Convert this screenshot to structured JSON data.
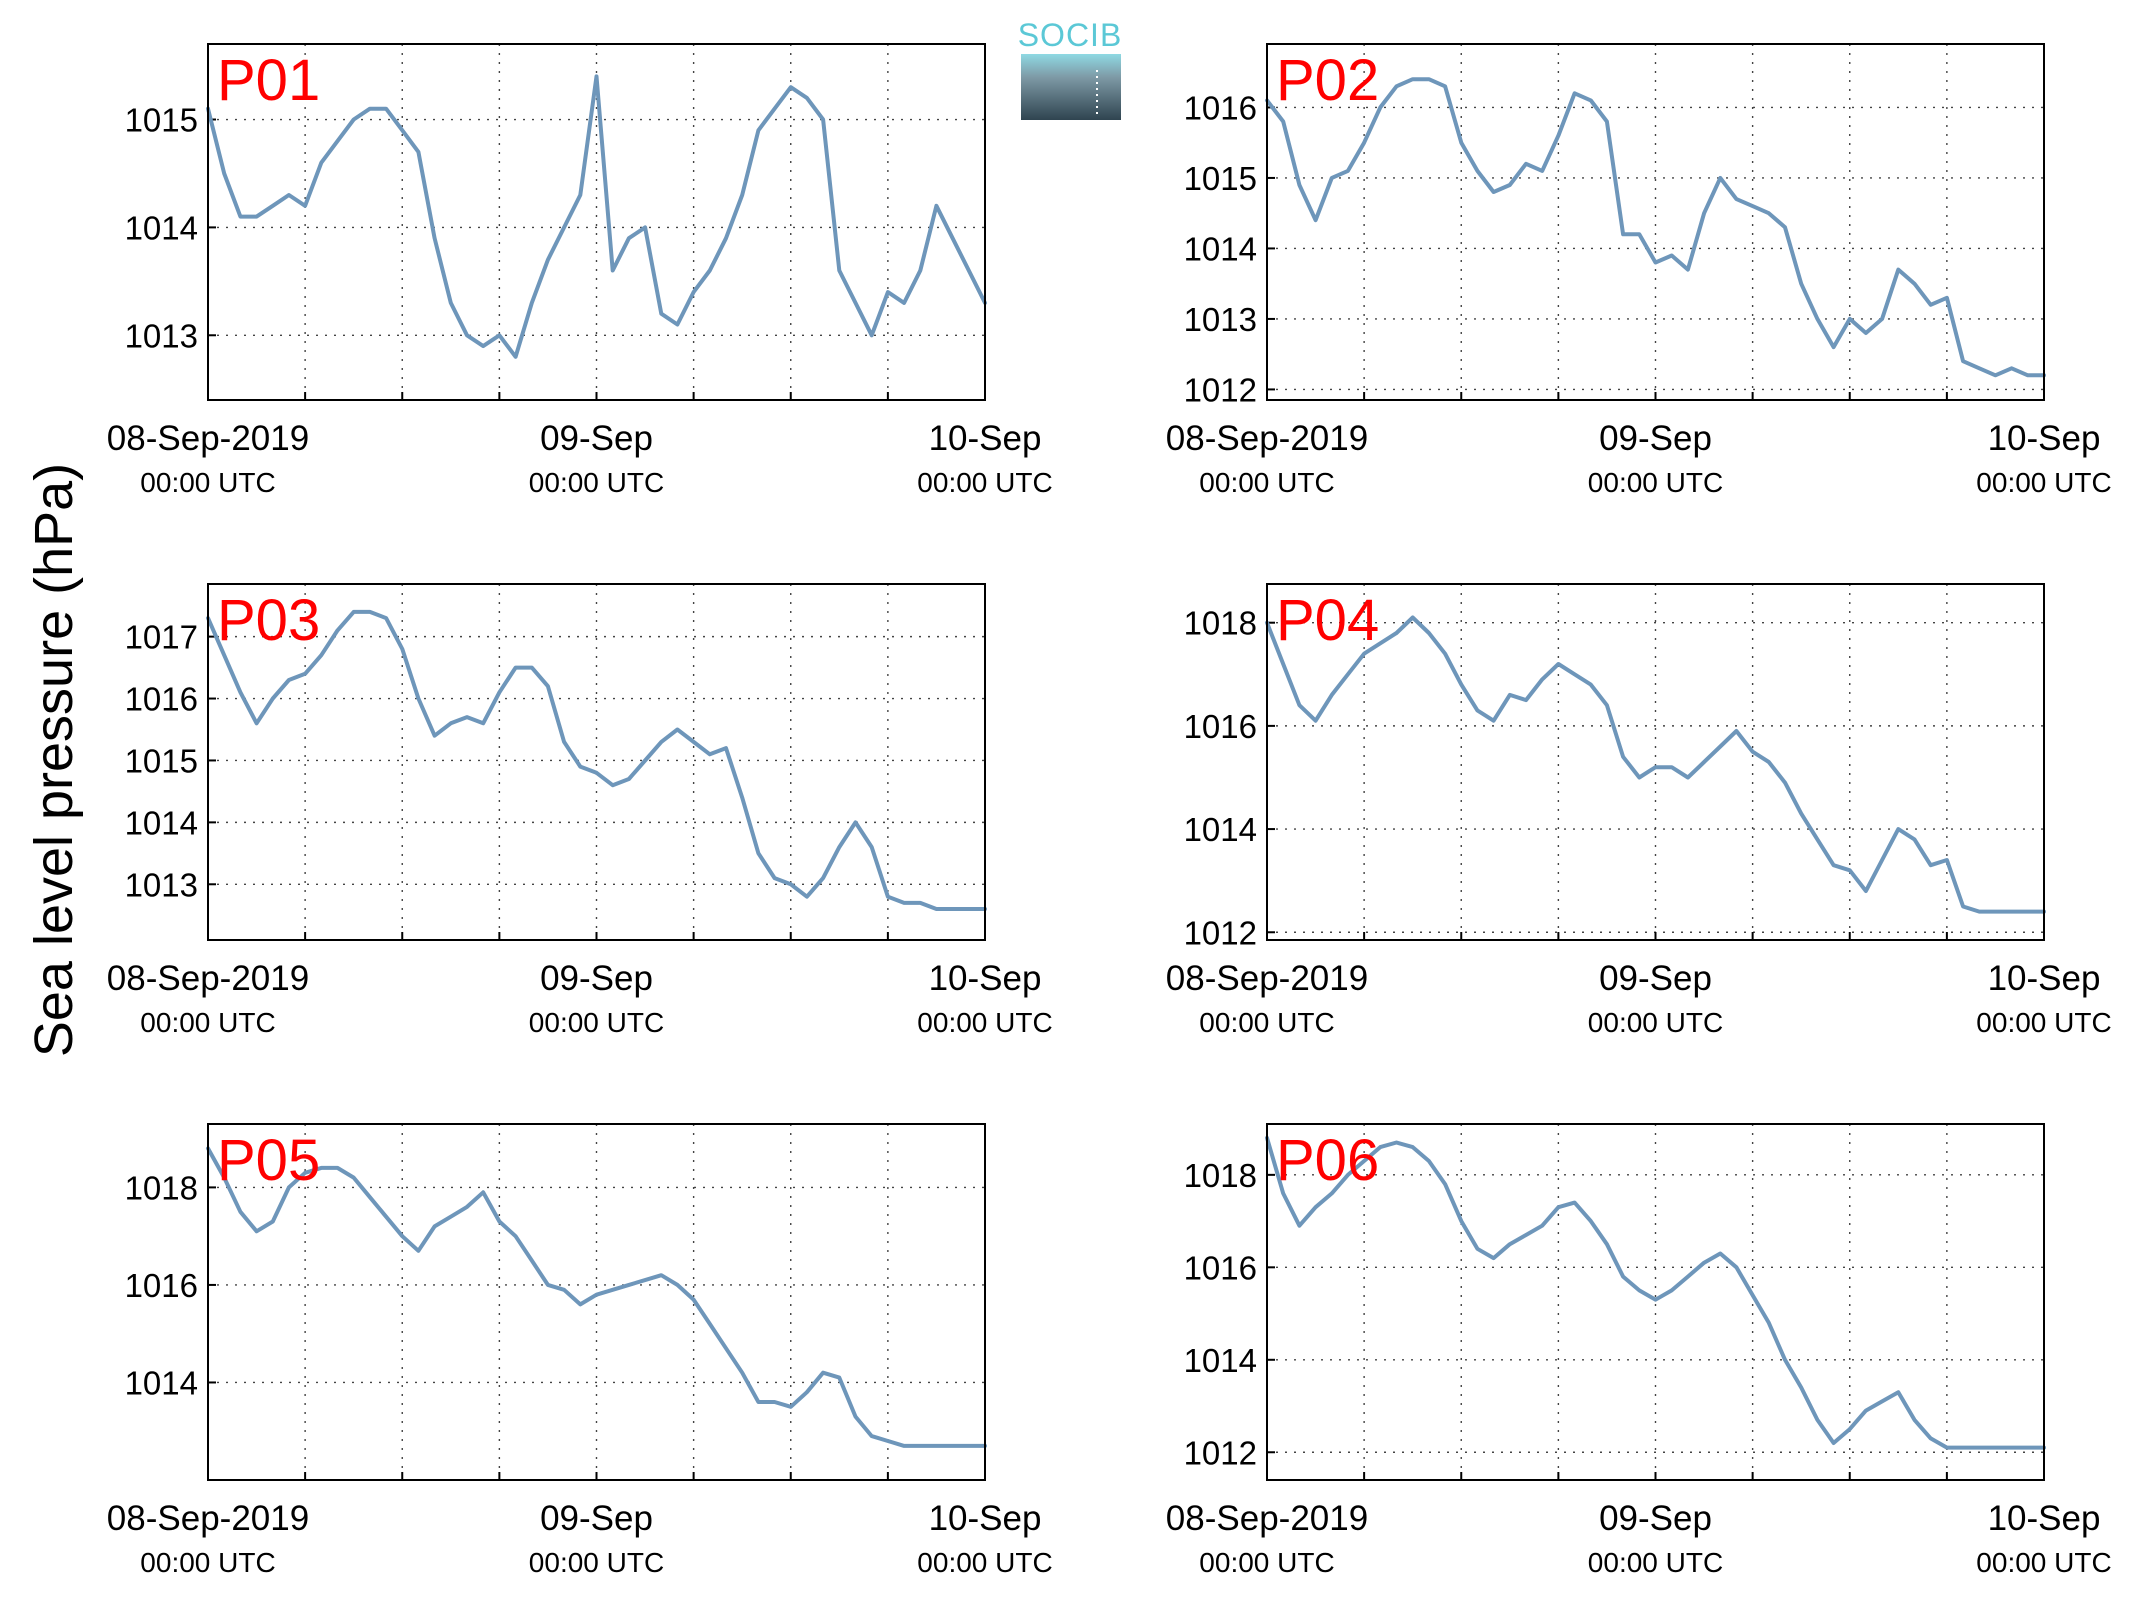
{
  "figure": {
    "ylabel": "Sea level pressure (hPa)",
    "logo": {
      "text": "SOCIB"
    }
  },
  "chart_data": [
    {
      "type": "line",
      "panel_label": "P01",
      "xlim": [
        "2019-09-08T00:00",
        "2019-09-10T00:00"
      ],
      "ylim": [
        1012.4,
        1015.7
      ],
      "yticks": [
        1013,
        1014,
        1015
      ],
      "xticks": [
        {
          "date": "08-Sep-2019",
          "time": "00:00 UTC"
        },
        {
          "date": "09-Sep",
          "time": "00:00 UTC"
        },
        {
          "date": "10-Sep",
          "time": "00:00 UTC"
        }
      ],
      "grid": true,
      "series": [
        {
          "color": "#6e96ba",
          "x_hours": [
            0,
            1,
            2,
            3,
            4,
            5,
            6,
            7,
            8,
            9,
            10,
            11,
            12,
            13,
            14,
            15,
            16,
            17,
            18,
            19,
            20,
            21,
            22,
            23,
            24,
            25,
            26,
            27,
            28,
            29,
            30,
            31,
            32,
            33,
            34,
            35,
            36,
            37,
            38,
            39,
            40,
            41,
            42,
            43,
            44,
            45,
            46,
            47,
            48
          ],
          "values": [
            1015.1,
            1014.5,
            1014.1,
            1014.1,
            1014.2,
            1014.3,
            1014.2,
            1014.6,
            1014.8,
            1015.0,
            1015.1,
            1015.1,
            1014.9,
            1014.7,
            1013.9,
            1013.3,
            1013.0,
            1012.9,
            1013.0,
            1012.8,
            1013.3,
            1013.7,
            1014.0,
            1014.3,
            1015.4,
            1013.6,
            1013.9,
            1014.0,
            1013.2,
            1013.1,
            1013.4,
            1013.6,
            1013.9,
            1014.3,
            1014.9,
            1015.1,
            1015.3,
            1015.2,
            1015.0,
            1013.6,
            1013.3,
            1013.0,
            1013.4,
            1013.3,
            1013.6,
            1014.2,
            1013.9,
            1013.6,
            1013.3
          ]
        }
      ]
    },
    {
      "type": "line",
      "panel_label": "P02",
      "xlim": [
        "2019-09-08T00:00",
        "2019-09-10T00:00"
      ],
      "ylim": [
        1011.85,
        1016.9
      ],
      "yticks": [
        1012,
        1013,
        1014,
        1015,
        1016
      ],
      "xticks": [
        {
          "date": "08-Sep-2019",
          "time": "00:00 UTC"
        },
        {
          "date": "09-Sep",
          "time": "00:00 UTC"
        },
        {
          "date": "10-Sep",
          "time": "00:00 UTC"
        }
      ],
      "grid": true,
      "series": [
        {
          "color": "#6e96ba",
          "x_hours": [
            0,
            1,
            2,
            3,
            4,
            5,
            6,
            7,
            8,
            9,
            10,
            11,
            12,
            13,
            14,
            15,
            16,
            17,
            18,
            19,
            20,
            21,
            22,
            23,
            24,
            25,
            26,
            27,
            28,
            29,
            30,
            31,
            32,
            33,
            34,
            35,
            36,
            37,
            38,
            39,
            40,
            41,
            42,
            43,
            44,
            45,
            46,
            47,
            48
          ],
          "values": [
            1016.1,
            1015.8,
            1014.9,
            1014.4,
            1015.0,
            1015.1,
            1015.5,
            1016.0,
            1016.3,
            1016.4,
            1016.4,
            1016.3,
            1015.5,
            1015.1,
            1014.8,
            1014.9,
            1015.2,
            1015.1,
            1015.6,
            1016.2,
            1016.1,
            1015.8,
            1014.2,
            1014.2,
            1013.8,
            1013.9,
            1013.7,
            1014.5,
            1015.0,
            1014.7,
            1014.6,
            1014.5,
            1014.3,
            1013.5,
            1013.0,
            1012.6,
            1013.0,
            1012.8,
            1013.0,
            1013.7,
            1013.5,
            1013.2,
            1013.3,
            1012.4,
            1012.3,
            1012.2,
            1012.3,
            1012.2,
            1012.2
          ]
        }
      ]
    },
    {
      "type": "line",
      "panel_label": "P03",
      "xlim": [
        "2019-09-08T00:00",
        "2019-09-10T00:00"
      ],
      "ylim": [
        1012.1,
        1017.85
      ],
      "yticks": [
        1013,
        1014,
        1015,
        1016,
        1017
      ],
      "xticks": [
        {
          "date": "08-Sep-2019",
          "time": "00:00 UTC"
        },
        {
          "date": "09-Sep",
          "time": "00:00 UTC"
        },
        {
          "date": "10-Sep",
          "time": "00:00 UTC"
        }
      ],
      "grid": true,
      "series": [
        {
          "color": "#6e96ba",
          "x_hours": [
            0,
            1,
            2,
            3,
            4,
            5,
            6,
            7,
            8,
            9,
            10,
            11,
            12,
            13,
            14,
            15,
            16,
            17,
            18,
            19,
            20,
            21,
            22,
            23,
            24,
            25,
            26,
            27,
            28,
            29,
            30,
            31,
            32,
            33,
            34,
            35,
            36,
            37,
            38,
            39,
            40,
            41,
            42,
            43,
            44,
            45,
            46,
            47,
            48
          ],
          "values": [
            1017.3,
            1016.7,
            1016.1,
            1015.6,
            1016.0,
            1016.3,
            1016.4,
            1016.7,
            1017.1,
            1017.4,
            1017.4,
            1017.3,
            1016.8,
            1016.0,
            1015.4,
            1015.6,
            1015.7,
            1015.6,
            1016.1,
            1016.5,
            1016.5,
            1016.2,
            1015.3,
            1014.9,
            1014.8,
            1014.6,
            1014.7,
            1015.0,
            1015.3,
            1015.5,
            1015.3,
            1015.1,
            1015.2,
            1014.4,
            1013.5,
            1013.1,
            1013.0,
            1012.8,
            1013.1,
            1013.6,
            1014.0,
            1013.6,
            1012.8,
            1012.7,
            1012.7,
            1012.6,
            1012.6,
            1012.6,
            1012.6
          ]
        }
      ]
    },
    {
      "type": "line",
      "panel_label": "P04",
      "xlim": [
        "2019-09-08T00:00",
        "2019-09-10T00:00"
      ],
      "ylim": [
        1011.85,
        1018.75
      ],
      "yticks": [
        1012,
        1014,
        1016,
        1018
      ],
      "xticks": [
        {
          "date": "08-Sep-2019",
          "time": "00:00 UTC"
        },
        {
          "date": "09-Sep",
          "time": "00:00 UTC"
        },
        {
          "date": "10-Sep",
          "time": "00:00 UTC"
        }
      ],
      "grid": true,
      "series": [
        {
          "color": "#6e96ba",
          "x_hours": [
            0,
            1,
            2,
            3,
            4,
            5,
            6,
            7,
            8,
            9,
            10,
            11,
            12,
            13,
            14,
            15,
            16,
            17,
            18,
            19,
            20,
            21,
            22,
            23,
            24,
            25,
            26,
            27,
            28,
            29,
            30,
            31,
            32,
            33,
            34,
            35,
            36,
            37,
            38,
            39,
            40,
            41,
            42,
            43,
            44,
            45,
            46,
            47,
            48
          ],
          "values": [
            1018.0,
            1017.2,
            1016.4,
            1016.1,
            1016.6,
            1017.0,
            1017.4,
            1017.6,
            1017.8,
            1018.1,
            1017.8,
            1017.4,
            1016.8,
            1016.3,
            1016.1,
            1016.6,
            1016.5,
            1016.9,
            1017.2,
            1017.0,
            1016.8,
            1016.4,
            1015.4,
            1015.0,
            1015.2,
            1015.2,
            1015.0,
            1015.3,
            1015.6,
            1015.9,
            1015.5,
            1015.3,
            1014.9,
            1014.3,
            1013.8,
            1013.3,
            1013.2,
            1012.8,
            1013.4,
            1014.0,
            1013.8,
            1013.3,
            1013.4,
            1012.5,
            1012.4,
            1012.4,
            1012.4,
            1012.4,
            1012.4
          ]
        }
      ]
    },
    {
      "type": "line",
      "panel_label": "P05",
      "xlim": [
        "2019-09-08T00:00",
        "2019-09-10T00:00"
      ],
      "ylim": [
        1012.0,
        1019.3
      ],
      "yticks": [
        1014,
        1016,
        1018
      ],
      "xticks": [
        {
          "date": "08-Sep-2019",
          "time": "00:00 UTC"
        },
        {
          "date": "09-Sep",
          "time": "00:00 UTC"
        },
        {
          "date": "10-Sep",
          "time": "00:00 UTC"
        }
      ],
      "grid": true,
      "series": [
        {
          "color": "#6e96ba",
          "x_hours": [
            0,
            1,
            2,
            3,
            4,
            5,
            6,
            7,
            8,
            9,
            10,
            11,
            12,
            13,
            14,
            15,
            16,
            17,
            18,
            19,
            20,
            21,
            22,
            23,
            24,
            25,
            26,
            27,
            28,
            29,
            30,
            31,
            32,
            33,
            34,
            35,
            36,
            37,
            38,
            39,
            40,
            41,
            42,
            43,
            44,
            45,
            46,
            47,
            48
          ],
          "values": [
            1018.8,
            1018.2,
            1017.5,
            1017.1,
            1017.3,
            1018.0,
            1018.3,
            1018.4,
            1018.4,
            1018.2,
            1017.8,
            1017.4,
            1017.0,
            1016.7,
            1017.2,
            1017.4,
            1017.6,
            1017.9,
            1017.3,
            1017.0,
            1016.5,
            1016.0,
            1015.9,
            1015.6,
            1015.8,
            1015.9,
            1016.0,
            1016.1,
            1016.2,
            1016.0,
            1015.7,
            1015.2,
            1014.7,
            1014.2,
            1013.6,
            1013.6,
            1013.5,
            1013.8,
            1014.2,
            1014.1,
            1013.3,
            1012.9,
            1012.8,
            1012.7,
            1012.7,
            1012.7,
            1012.7,
            1012.7,
            1012.7
          ]
        }
      ]
    },
    {
      "type": "line",
      "panel_label": "P06",
      "xlim": [
        "2019-09-08T00:00",
        "2019-09-10T00:00"
      ],
      "ylim": [
        1011.4,
        1019.1
      ],
      "yticks": [
        1012,
        1014,
        1016,
        1018
      ],
      "xticks": [
        {
          "date": "08-Sep-2019",
          "time": "00:00 UTC"
        },
        {
          "date": "09-Sep",
          "time": "00:00 UTC"
        },
        {
          "date": "10-Sep",
          "time": "00:00 UTC"
        }
      ],
      "grid": true,
      "series": [
        {
          "color": "#6e96ba",
          "x_hours": [
            0,
            1,
            2,
            3,
            4,
            5,
            6,
            7,
            8,
            9,
            10,
            11,
            12,
            13,
            14,
            15,
            16,
            17,
            18,
            19,
            20,
            21,
            22,
            23,
            24,
            25,
            26,
            27,
            28,
            29,
            30,
            31,
            32,
            33,
            34,
            35,
            36,
            37,
            38,
            39,
            40,
            41,
            42,
            43,
            44,
            45,
            46,
            47,
            48
          ],
          "values": [
            1018.8,
            1017.6,
            1016.9,
            1017.3,
            1017.6,
            1018.0,
            1018.3,
            1018.6,
            1018.7,
            1018.6,
            1018.3,
            1017.8,
            1017.0,
            1016.4,
            1016.2,
            1016.5,
            1016.7,
            1016.9,
            1017.3,
            1017.4,
            1017.0,
            1016.5,
            1015.8,
            1015.5,
            1015.3,
            1015.5,
            1015.8,
            1016.1,
            1016.3,
            1016.0,
            1015.4,
            1014.8,
            1014.0,
            1013.4,
            1012.7,
            1012.2,
            1012.5,
            1012.9,
            1013.1,
            1013.3,
            1012.7,
            1012.3,
            1012.1,
            1012.1,
            1012.1,
            1012.1,
            1012.1,
            1012.1,
            1012.1
          ]
        }
      ]
    }
  ]
}
